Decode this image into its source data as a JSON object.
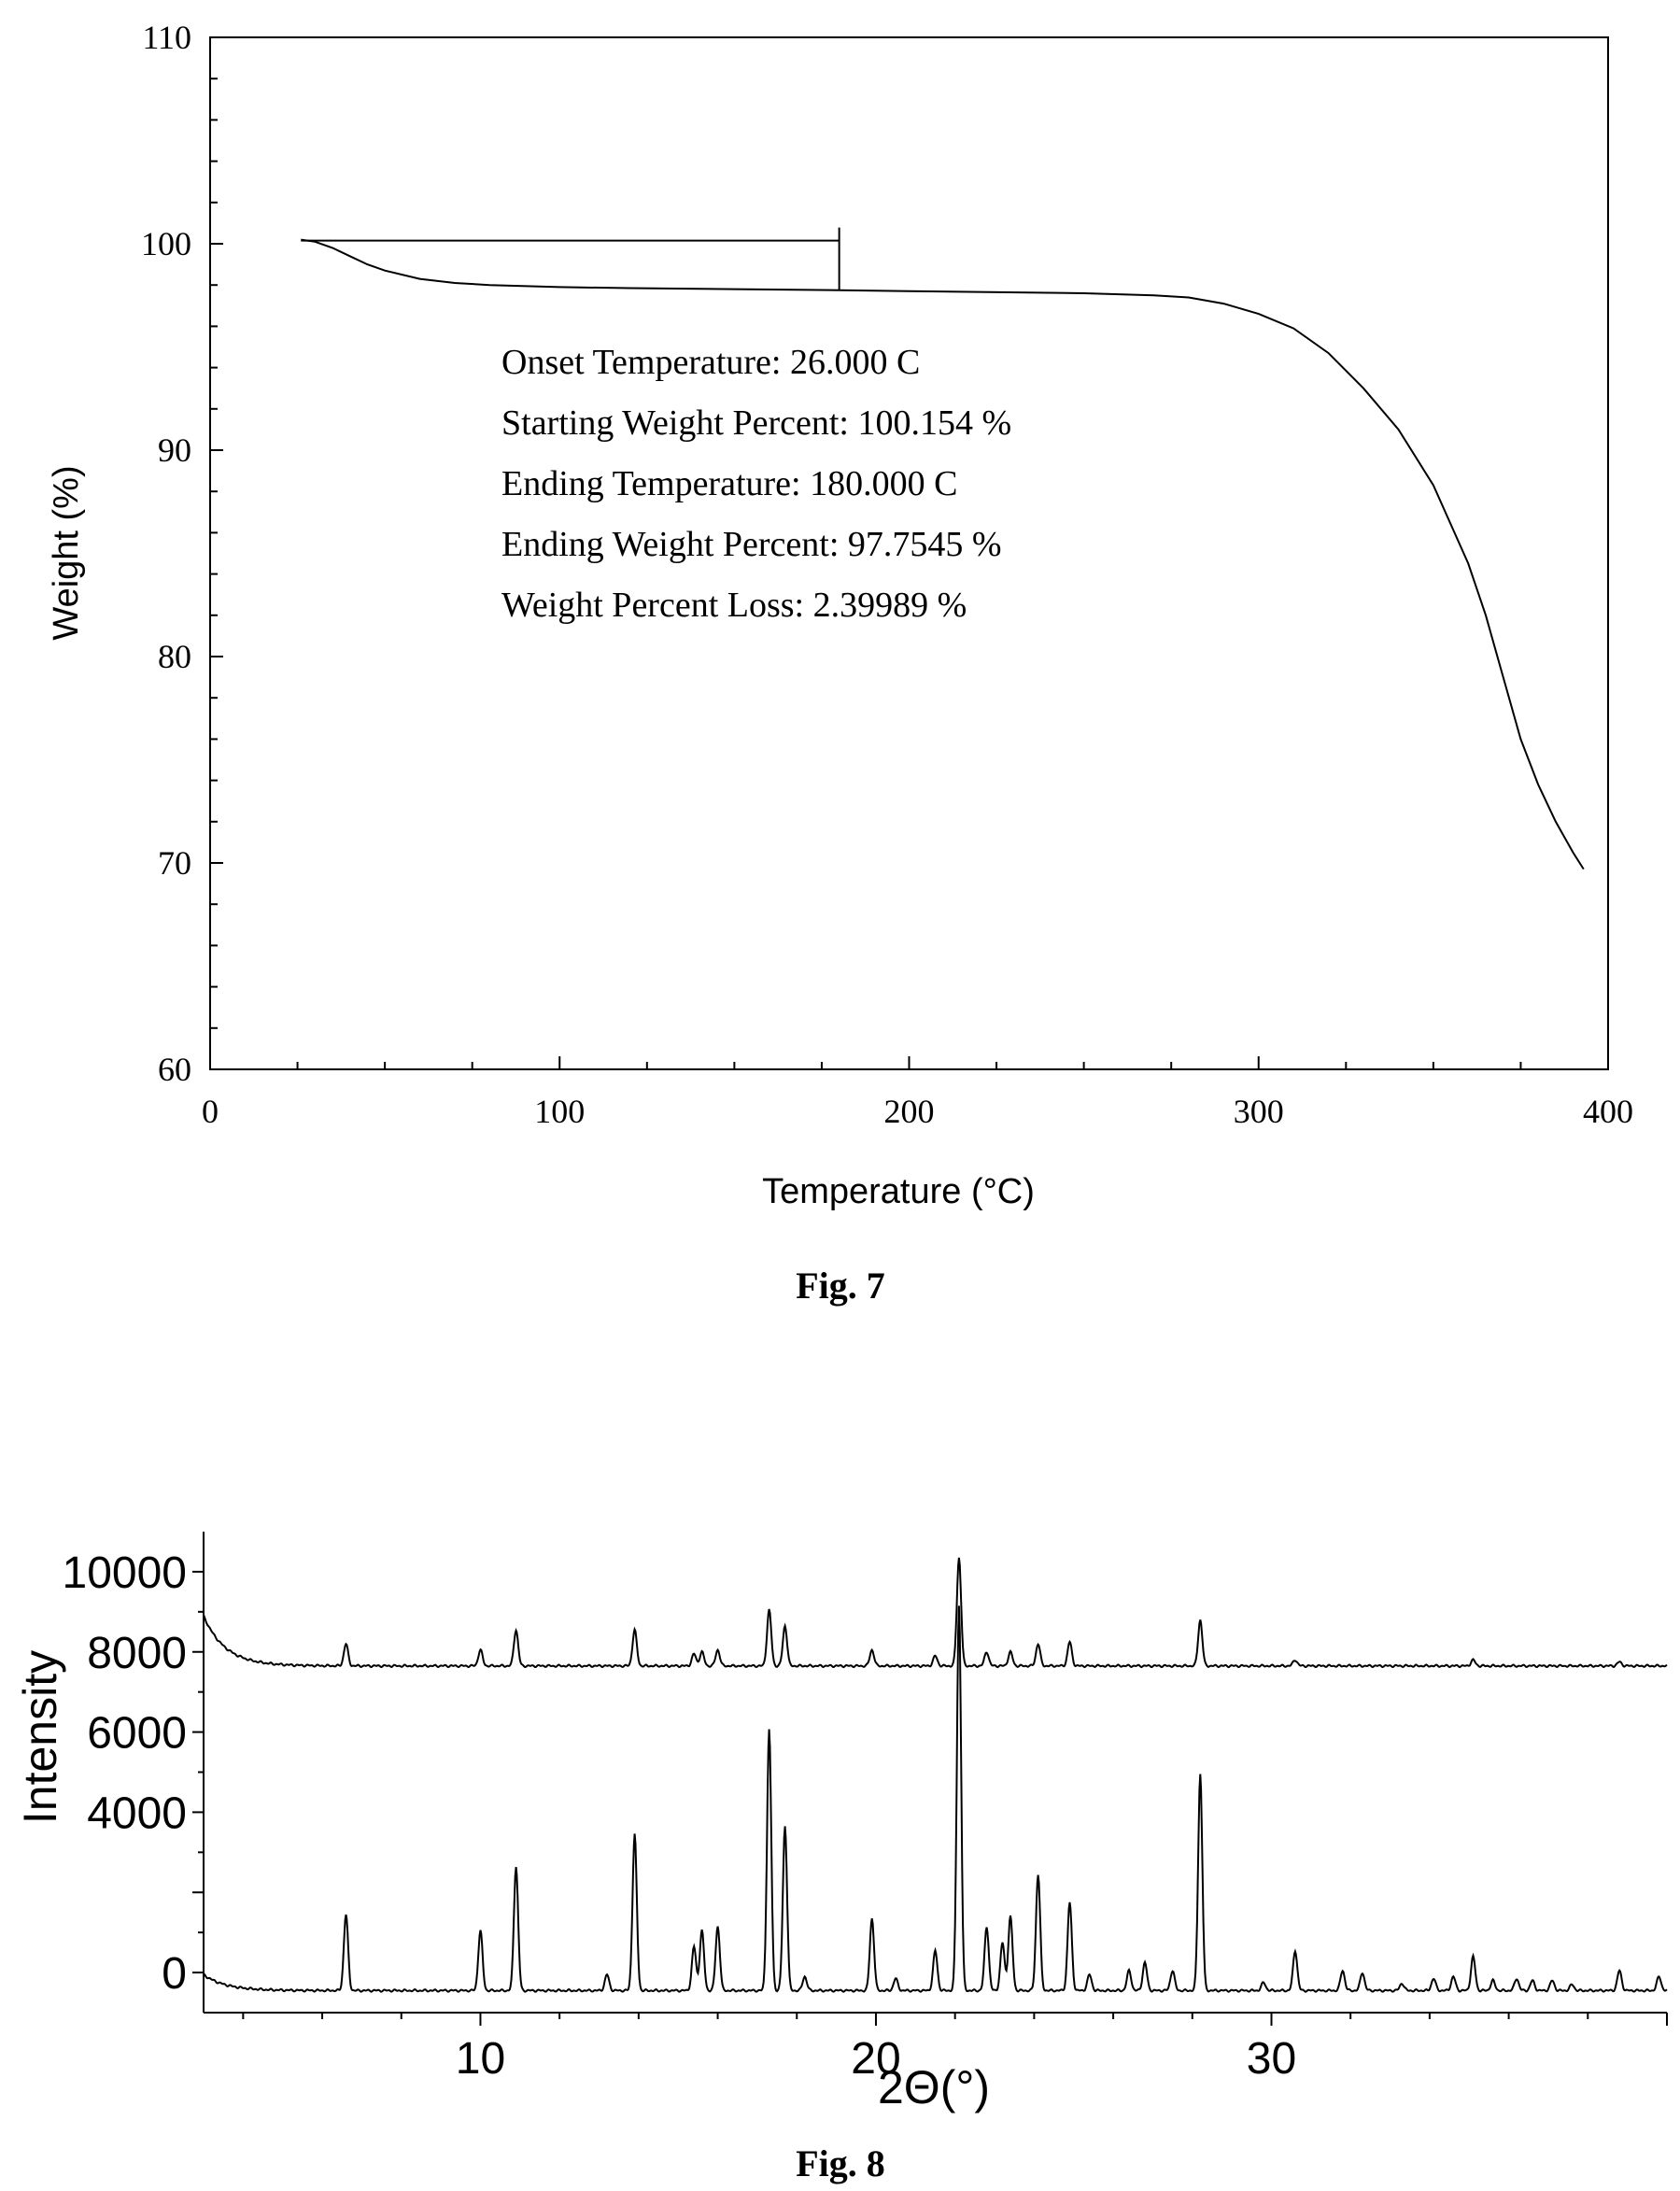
{
  "figures": [
    {
      "caption": "Fig. 7"
    },
    {
      "caption": "Fig. 8"
    }
  ],
  "chart_data": [
    {
      "type": "line",
      "xlabel": "Temperature (°C)",
      "ylabel": "Weight (%)",
      "xlim": [
        0,
        400
      ],
      "ylim": [
        60,
        110
      ],
      "x_ticks": [
        0,
        100,
        200,
        300,
        400
      ],
      "y_ticks": [
        60,
        70,
        80,
        90,
        100,
        110
      ],
      "grid": false,
      "series": [
        {
          "x": [
            26,
            30,
            35,
            40,
            45,
            50,
            60,
            70,
            80,
            100,
            120,
            150,
            180,
            200,
            250,
            270,
            280,
            290,
            300,
            310,
            320,
            330,
            340,
            350,
            360,
            365,
            370,
            375,
            380,
            385,
            390,
            393
          ],
          "y": [
            100.2,
            100.1,
            99.8,
            99.4,
            99.0,
            98.7,
            98.3,
            98.1,
            98.0,
            97.9,
            97.85,
            97.8,
            97.75,
            97.7,
            97.6,
            97.5,
            97.4,
            97.1,
            96.6,
            95.9,
            94.7,
            93.0,
            91.0,
            88.3,
            84.5,
            82.0,
            79.0,
            76.0,
            73.8,
            72.0,
            70.5,
            69.7
          ]
        }
      ],
      "annotation": {
        "onset_temperature": 26.0,
        "ending_temperature": 180.0,
        "starting_weight": 100.154,
        "lines": [
          "Onset Temperature: 26.000 C",
          "Starting Weight Percent: 100.154 %",
          "Ending Temperature: 180.000 C",
          "Ending Weight Percent: 97.7545 %",
          "Weight Percent Loss: 2.39989 %"
        ]
      }
    },
    {
      "type": "line",
      "xlabel": "2Θ(°)",
      "ylabel": "Intensity",
      "xlim": [
        3,
        40
      ],
      "ylim": [
        -1000,
        11000
      ],
      "x_ticks": [
        10,
        20,
        30
      ],
      "y_ticks": [
        0,
        4000,
        6000,
        8000,
        10000
      ],
      "y_tick_labels": [
        "0",
        "4000",
        "6000",
        "8000",
        "10000"
      ],
      "grid": false,
      "series": [
        {
          "baseline": -450,
          "start_bump": 400,
          "peaks": [
            [
              6.6,
              1900
            ],
            [
              10.0,
              1500
            ],
            [
              10.9,
              3100
            ],
            [
              13.2,
              400
            ],
            [
              13.9,
              3900
            ],
            [
              15.4,
              1100
            ],
            [
              15.6,
              1500
            ],
            [
              16.0,
              1600
            ],
            [
              17.3,
              6500
            ],
            [
              17.7,
              4100
            ],
            [
              18.2,
              350
            ],
            [
              19.9,
              1800
            ],
            [
              20.5,
              300
            ],
            [
              21.5,
              1000
            ],
            [
              22.1,
              9600
            ],
            [
              22.8,
              1600
            ],
            [
              23.2,
              1200
            ],
            [
              23.4,
              1850
            ],
            [
              24.1,
              2900
            ],
            [
              24.9,
              2200
            ],
            [
              25.4,
              400
            ],
            [
              26.4,
              500
            ],
            [
              26.8,
              700
            ],
            [
              27.5,
              500
            ],
            [
              28.2,
              5400
            ],
            [
              29.8,
              200
            ],
            [
              30.6,
              1000
            ],
            [
              31.8,
              500
            ],
            [
              32.3,
              450
            ],
            [
              33.3,
              180
            ],
            [
              34.1,
              300
            ],
            [
              34.6,
              350
            ],
            [
              35.1,
              850
            ],
            [
              35.6,
              250
            ],
            [
              36.2,
              300
            ],
            [
              36.6,
              250
            ],
            [
              37.1,
              250
            ],
            [
              37.6,
              150
            ],
            [
              38.8,
              500
            ],
            [
              39.8,
              350
            ]
          ]
        },
        {
          "baseline": 7650,
          "start_bump": 1250,
          "peaks": [
            [
              6.6,
              550
            ],
            [
              10.0,
              400
            ],
            [
              10.9,
              900
            ],
            [
              13.9,
              900
            ],
            [
              15.4,
              300
            ],
            [
              15.6,
              350
            ],
            [
              16.0,
              400
            ],
            [
              17.3,
              1400
            ],
            [
              17.7,
              1000
            ],
            [
              19.9,
              400
            ],
            [
              21.5,
              250
            ],
            [
              22.1,
              2700
            ],
            [
              22.8,
              350
            ],
            [
              23.4,
              350
            ],
            [
              24.1,
              550
            ],
            [
              24.9,
              600
            ],
            [
              28.2,
              1150
            ],
            [
              30.6,
              150
            ],
            [
              35.1,
              150
            ],
            [
              38.8,
              100
            ]
          ]
        }
      ]
    }
  ]
}
